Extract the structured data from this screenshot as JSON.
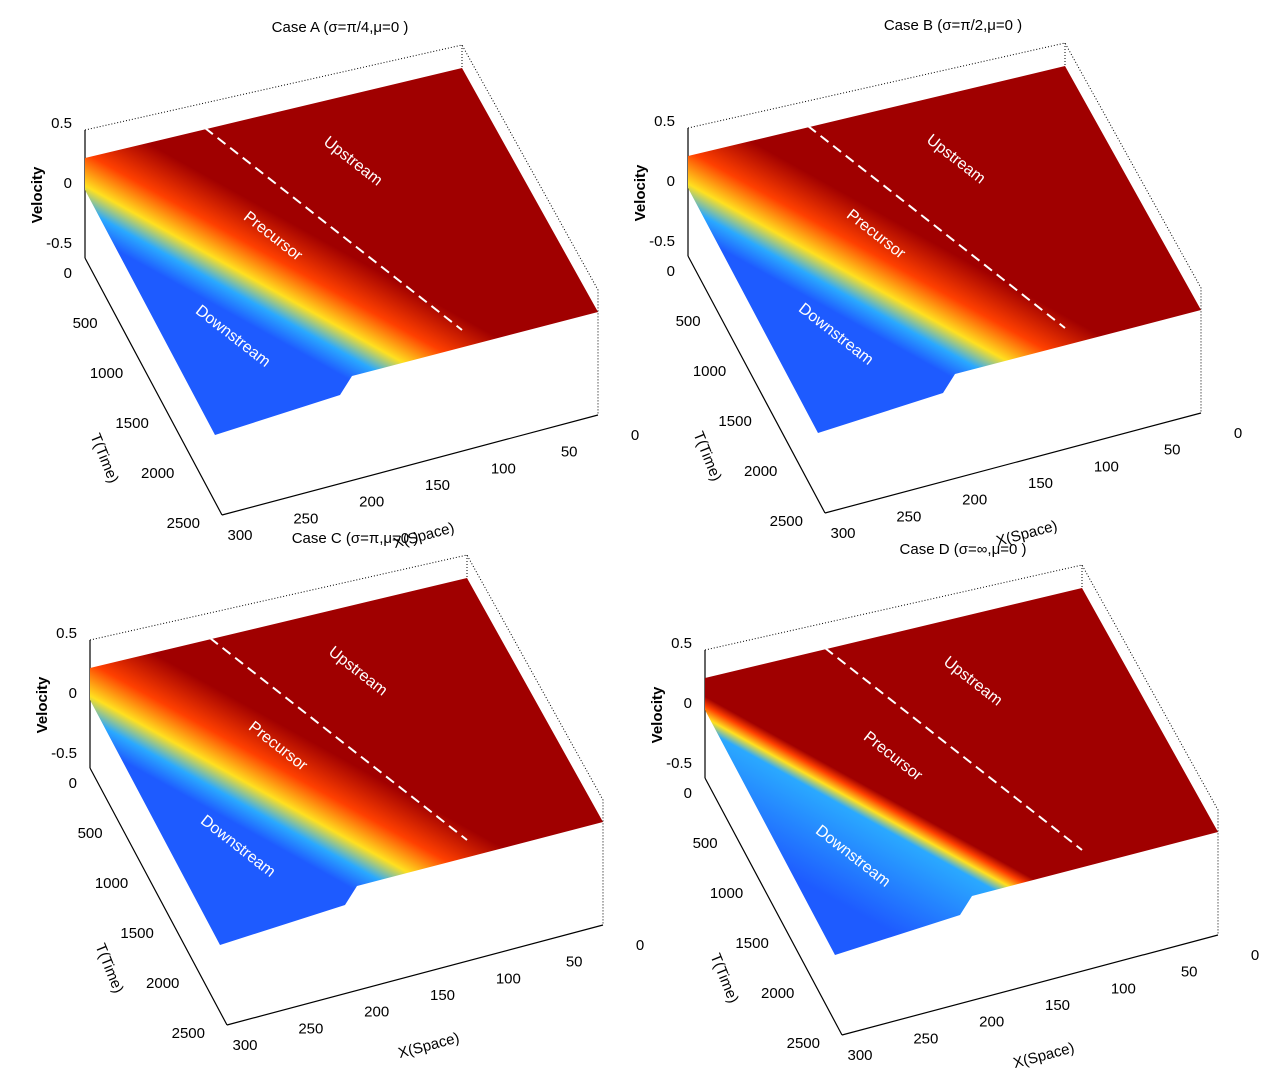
{
  "chart_data": [
    {
      "type": "surface",
      "title": "Case A (σ=π/4,μ=0 )",
      "zlabel": "Velocity",
      "ylabel": "T(Time)",
      "xlabel": "X(Space)",
      "zticks": [
        "0.5",
        "0",
        "-0.5"
      ],
      "zlim": [
        -0.5,
        0.5
      ],
      "yticks": [
        "0",
        "500",
        "1000",
        "1500",
        "2000",
        "2500"
      ],
      "ylim": [
        0,
        2500
      ],
      "xticks": [
        "300",
        "250",
        "200",
        "150",
        "100",
        "50",
        "0"
      ],
      "xlim": [
        0,
        300
      ],
      "regions": [
        "Upstream",
        "Precursor",
        "Downstream"
      ],
      "colormap": [
        "#1e5bff",
        "#2aa9ff",
        "#ffe020",
        "#ff4000",
        "#a00000"
      ]
    },
    {
      "type": "surface",
      "title": "Case B (σ=π/2,μ=0 )",
      "zlabel": "Velocity",
      "ylabel": "T(Time)",
      "xlabel": "X(Space)",
      "zticks": [
        "0.5",
        "0",
        "-0.5"
      ],
      "zlim": [
        -0.5,
        0.5
      ],
      "yticks": [
        "0",
        "500",
        "1000",
        "1500",
        "2000",
        "2500"
      ],
      "ylim": [
        0,
        2500
      ],
      "xticks": [
        "300",
        "250",
        "200",
        "150",
        "100",
        "50",
        "0"
      ],
      "xlim": [
        0,
        300
      ],
      "regions": [
        "Upstream",
        "Precursor",
        "Downstream"
      ],
      "colormap": [
        "#1e5bff",
        "#2aa9ff",
        "#ffe020",
        "#ff4000",
        "#a00000"
      ]
    },
    {
      "type": "surface",
      "title": "Case C (σ=π,μ=0 )",
      "zlabel": "Velocity",
      "ylabel": "T(Time)",
      "xlabel": "X(Space)",
      "zticks": [
        "0.5",
        "0",
        "-0.5"
      ],
      "zlim": [
        -0.5,
        0.5
      ],
      "yticks": [
        "0",
        "500",
        "1000",
        "1500",
        "2000",
        "2500"
      ],
      "ylim": [
        0,
        2500
      ],
      "xticks": [
        "300",
        "250",
        "200",
        "150",
        "100",
        "50",
        "0"
      ],
      "xlim": [
        0,
        300
      ],
      "regions": [
        "Upstream",
        "Precursor",
        "Downstream"
      ],
      "colormap": [
        "#1e5bff",
        "#2aa9ff",
        "#ffe020",
        "#ff4000",
        "#a00000"
      ]
    },
    {
      "type": "surface",
      "title": "Case D (σ=∞,μ=0 )",
      "zlabel": "Velocity",
      "ylabel": "T(Time)",
      "xlabel": "X(Space)",
      "zticks": [
        "0.5",
        "0",
        "-0.5"
      ],
      "zlim": [
        -0.5,
        0.5
      ],
      "yticks": [
        "0",
        "500",
        "1000",
        "1500",
        "2000",
        "2500"
      ],
      "ylim": [
        0,
        2500
      ],
      "xticks": [
        "300",
        "250",
        "200",
        "150",
        "100",
        "50",
        "0"
      ],
      "xlim": [
        0,
        300
      ],
      "regions": [
        "Upstream",
        "Precursor",
        "Downstream"
      ],
      "colormap": [
        "#1e5bff",
        "#2aa9ff",
        "#ffe020",
        "#ff4000",
        "#a00000"
      ]
    }
  ]
}
